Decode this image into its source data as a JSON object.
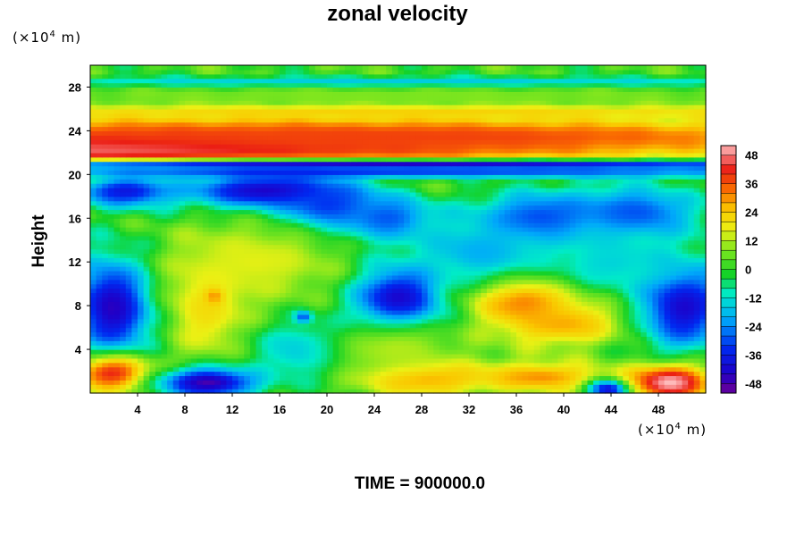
{
  "chart_data": {
    "type": "heatmap",
    "title": "zonal velocity",
    "ylabel": "Height",
    "y_unit_parts": [
      "(×10",
      "4",
      " m)"
    ],
    "x_unit_parts": [
      "(×10",
      "4",
      " m)"
    ],
    "xlim": [
      0,
      52
    ],
    "ylim": [
      0,
      30
    ],
    "x_ticks": [
      4,
      8,
      12,
      16,
      20,
      24,
      28,
      32,
      36,
      40,
      44,
      48
    ],
    "y_ticks": [
      4,
      8,
      12,
      16,
      20,
      24,
      28
    ],
    "colorbar": {
      "range": [
        -52,
        52
      ],
      "ticks": [
        48,
        36,
        24,
        12,
        0,
        -12,
        -24,
        -36,
        -48
      ]
    },
    "time_label": "TIME = 900000.0",
    "features": [
      {
        "x": 0,
        "y": 22.5,
        "value": 52,
        "sx": 30,
        "sy": 1.6
      },
      {
        "x": 26,
        "y": 23.5,
        "value": 38,
        "sx": 30,
        "sy": 1.2
      },
      {
        "x": 26,
        "y": 20.9,
        "value": -48,
        "sx": 30,
        "sy": 0.35
      },
      {
        "x": 26,
        "y": 20.2,
        "value": -30,
        "sx": 30,
        "sy": 0.4
      },
      {
        "x": 26,
        "y": 25.8,
        "value": 24,
        "sx": 30,
        "sy": 0.5
      },
      {
        "x": 26,
        "y": 28.5,
        "value": -18,
        "sx": 30,
        "sy": 0.35
      },
      {
        "x": 26,
        "y": 27.2,
        "value": 8,
        "sx": 30,
        "sy": 0.6
      },
      {
        "x": 15,
        "y": 18.5,
        "value": -46,
        "sx": 5,
        "sy": 1.2
      },
      {
        "x": 3,
        "y": 18.5,
        "value": -38,
        "sx": 3,
        "sy": 1.0
      },
      {
        "x": 20,
        "y": 17,
        "value": -36,
        "sx": 3,
        "sy": 1.5
      },
      {
        "x": 25,
        "y": 16,
        "value": -30,
        "sx": 3,
        "sy": 1.5
      },
      {
        "x": 38,
        "y": 16,
        "value": -32,
        "sx": 4,
        "sy": 1.8
      },
      {
        "x": 46,
        "y": 16.5,
        "value": -30,
        "sx": 4,
        "sy": 1.8
      },
      {
        "x": 2,
        "y": 8,
        "value": -46,
        "sx": 2.5,
        "sy": 3.2
      },
      {
        "x": 26,
        "y": 8.5,
        "value": -48,
        "sx": 2.8,
        "sy": 2.3
      },
      {
        "x": 50,
        "y": 8,
        "value": -44,
        "sx": 2.8,
        "sy": 2.8
      },
      {
        "x": 37,
        "y": 8.5,
        "value": 38,
        "sx": 3.2,
        "sy": 1.8
      },
      {
        "x": 40,
        "y": 6.5,
        "value": 28,
        "sx": 3.5,
        "sy": 1.5
      },
      {
        "x": 10,
        "y": 8,
        "value": 22,
        "sx": 2.5,
        "sy": 3.5
      },
      {
        "x": 10.5,
        "y": 9,
        "value": 38,
        "sx": 0.5,
        "sy": 0.5
      },
      {
        "x": 18,
        "y": 7,
        "value": -46,
        "sx": 0.5,
        "sy": 0.4
      },
      {
        "x": 2,
        "y": 1.8,
        "value": 42,
        "sx": 2.5,
        "sy": 1.2
      },
      {
        "x": 28,
        "y": 1.5,
        "value": 34,
        "sx": 4,
        "sy": 1.2
      },
      {
        "x": 38,
        "y": 1.5,
        "value": 30,
        "sx": 4,
        "sy": 1.0
      },
      {
        "x": 10,
        "y": 1,
        "value": -48,
        "sx": 3,
        "sy": 1.0
      },
      {
        "x": 44,
        "y": 0.4,
        "value": -50,
        "sx": 1.3,
        "sy": 0.6
      },
      {
        "x": 49,
        "y": 1,
        "value": 52,
        "sx": 2.5,
        "sy": 1.2
      },
      {
        "x": 18,
        "y": 4,
        "value": -18,
        "sx": 3,
        "sy": 2.0
      },
      {
        "x": 33,
        "y": 13,
        "value": -20,
        "sx": 4,
        "sy": 2.0
      },
      {
        "x": 14,
        "y": 12,
        "value": 16,
        "sx": 5,
        "sy": 2.5
      },
      {
        "x": 26,
        "y": 4,
        "value": 12,
        "sx": 4,
        "sy": 2.0
      },
      {
        "x": 44,
        "y": 12,
        "value": -14,
        "sx": 4,
        "sy": 2.0
      }
    ],
    "base_value": 2
  }
}
